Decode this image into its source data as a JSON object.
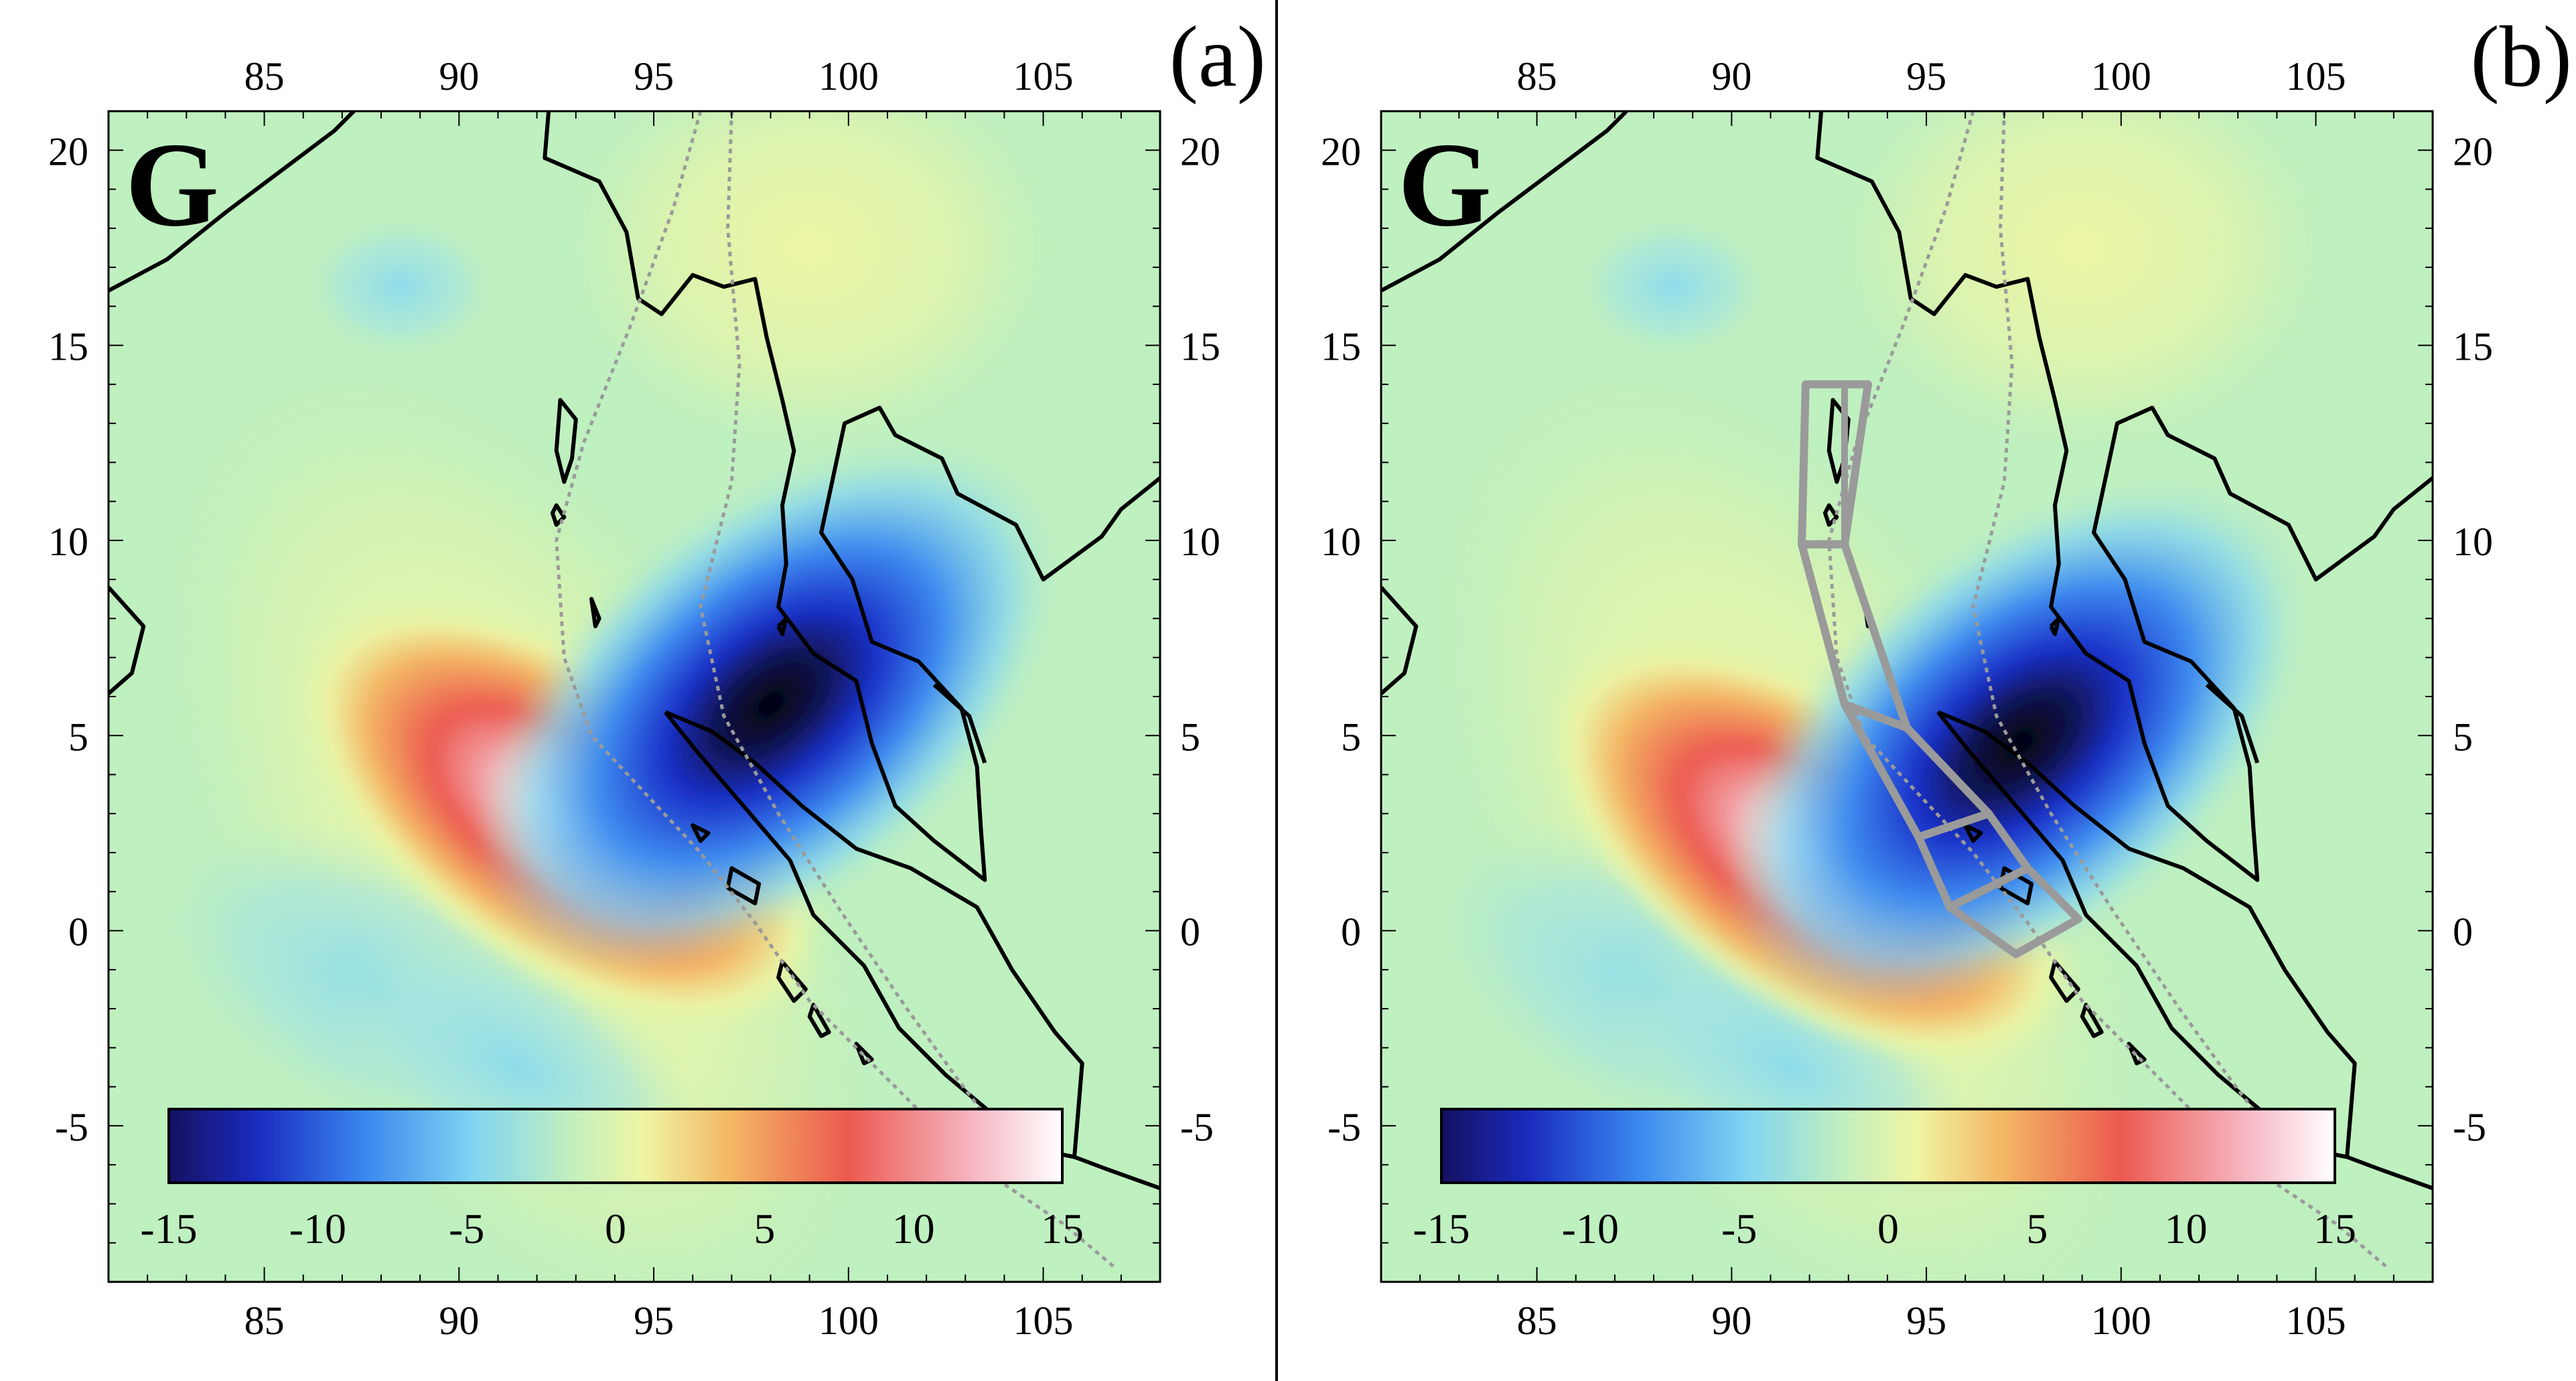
{
  "figure": {
    "panels": [
      {
        "id": "a",
        "label": "(a)",
        "map_letter": "G",
        "show_fault_segments": false,
        "x_ticks": [
          "85",
          "90",
          "95",
          "100",
          "105"
        ],
        "y_ticks": [
          "20",
          "15",
          "10",
          "5",
          "0",
          "-5"
        ],
        "colorbar_ticks": [
          "-15",
          "-10",
          "-5",
          "0",
          "5",
          "10",
          "15"
        ],
        "anomaly_center": {
          "lon": 96.8,
          "lat": 7.0
        }
      },
      {
        "id": "b",
        "label": "(b)",
        "map_letter": "G",
        "show_fault_segments": true,
        "x_ticks": [
          "85",
          "90",
          "95",
          "100",
          "105"
        ],
        "y_ticks": [
          "20",
          "15",
          "10",
          "5",
          "0",
          "-5"
        ],
        "colorbar_ticks": [
          "-15",
          "-10",
          "-5",
          "0",
          "5",
          "10",
          "15"
        ],
        "anomaly_center": {
          "lon": 96.2,
          "lat": 6.0
        }
      }
    ],
    "map_extent": {
      "lon": [
        81,
        108
      ],
      "lat": [
        -9,
        21
      ]
    },
    "colorbar_range": [
      -15,
      15
    ],
    "colors": {
      "background": "#bff0c0",
      "negative_extreme": "#0a0a30",
      "negative": "#1f3fd8",
      "neutral": "#d8f2a8",
      "positive": "#ec5a50",
      "positive_extreme": "#fbe8ee",
      "fault_segments": "#9a9a9a",
      "coastline": "#000000"
    }
  }
}
